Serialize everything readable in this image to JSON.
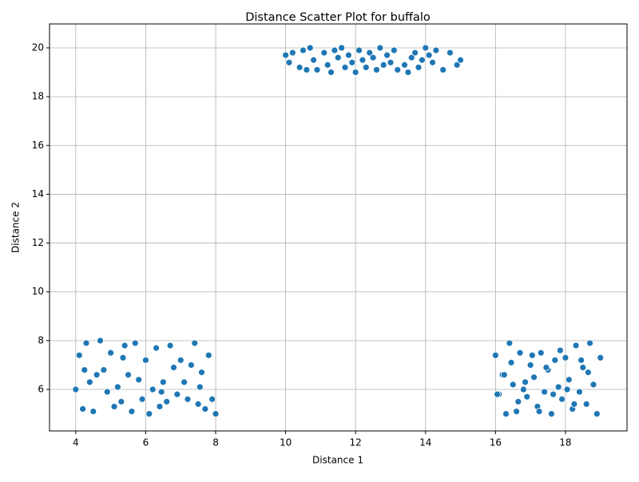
{
  "chart_data": {
    "type": "scatter",
    "title": "Distance Scatter Plot for buffalo",
    "x_label": "Distance 1",
    "y_label": "Distance 2",
    "series": [
      {
        "color": "#1f77b4",
        "x": [
          4.0,
          4.1,
          4.2,
          4.3,
          4.4,
          4.5,
          4.6,
          4.7,
          4.8,
          4.9,
          5.0,
          5.1,
          5.2,
          5.3,
          5.4,
          5.5,
          5.6,
          5.7,
          5.8,
          5.9,
          6.0,
          6.1,
          6.2,
          6.3,
          6.4,
          6.5,
          6.6,
          6.7,
          6.8,
          6.9,
          7.0,
          7.1,
          7.2,
          7.3,
          7.4,
          7.5,
          7.6,
          7.7,
          7.8,
          7.9,
          8.0,
          4.25,
          5.35,
          6.45,
          7.55,
          10.0,
          10.1,
          10.2,
          10.4,
          10.5,
          10.6,
          10.7,
          10.8,
          10.9,
          11.1,
          11.2,
          11.3,
          11.4,
          11.5,
          11.6,
          11.7,
          11.8,
          11.9,
          12.0,
          12.1,
          12.2,
          12.3,
          12.4,
          12.5,
          12.6,
          12.7,
          12.8,
          12.9,
          13.0,
          13.1,
          13.2,
          13.4,
          13.5,
          13.6,
          13.7,
          13.8,
          13.9,
          14.0,
          14.1,
          14.2,
          14.3,
          14.5,
          14.7,
          14.9,
          15.0,
          16.0,
          16.1,
          16.2,
          16.3,
          16.4,
          16.5,
          16.6,
          16.7,
          16.8,
          16.9,
          17.0,
          17.1,
          17.2,
          17.3,
          17.4,
          17.5,
          17.6,
          17.7,
          17.8,
          17.9,
          18.0,
          18.1,
          18.2,
          18.3,
          18.4,
          18.5,
          18.6,
          18.7,
          18.8,
          18.9,
          19.0,
          16.05,
          16.25,
          16.45,
          16.65,
          16.85,
          17.05,
          17.25,
          17.45,
          17.65,
          17.85,
          18.05,
          18.25,
          18.45,
          18.65
        ],
        "y": [
          6.0,
          7.4,
          5.2,
          7.9,
          6.3,
          5.1,
          6.6,
          8.0,
          6.8,
          5.9,
          7.5,
          5.3,
          6.1,
          5.5,
          7.8,
          6.6,
          5.1,
          7.9,
          6.4,
          5.6,
          7.2,
          5.0,
          6.0,
          7.7,
          5.3,
          6.3,
          5.5,
          7.8,
          6.9,
          5.8,
          7.2,
          6.3,
          5.6,
          7.0,
          7.9,
          5.4,
          6.7,
          5.2,
          7.4,
          5.6,
          5.0,
          6.8,
          7.3,
          5.9,
          6.1,
          19.7,
          19.4,
          19.8,
          19.2,
          19.9,
          19.1,
          20.0,
          19.5,
          19.1,
          19.8,
          19.3,
          19.0,
          19.9,
          19.6,
          20.0,
          19.2,
          19.7,
          19.4,
          19.0,
          19.9,
          19.5,
          19.2,
          19.8,
          19.6,
          19.1,
          20.0,
          19.3,
          19.7,
          19.4,
          19.9,
          19.1,
          19.3,
          19.0,
          19.6,
          19.8,
          19.2,
          19.5,
          20.0,
          19.7,
          19.4,
          19.9,
          19.1,
          19.8,
          19.3,
          19.5,
          7.4,
          5.8,
          6.6,
          5.0,
          7.9,
          6.2,
          5.1,
          7.5,
          6.0,
          5.7,
          7.0,
          6.5,
          5.3,
          7.5,
          5.9,
          6.8,
          5.0,
          7.2,
          6.1,
          5.6,
          7.3,
          6.4,
          5.2,
          7.8,
          5.9,
          6.9,
          5.4,
          7.9,
          6.2,
          5.0,
          7.3,
          5.8,
          6.6,
          7.1,
          5.5,
          6.3,
          7.4,
          5.1,
          6.9,
          5.8,
          7.6,
          6.0,
          5.4,
          7.2,
          6.7
        ]
      }
    ],
    "xlim": [
      3.25,
      19.76
    ],
    "ylim": [
      4.3,
      20.98
    ],
    "xticks": [
      4,
      6,
      8,
      10,
      12,
      14,
      16,
      18
    ],
    "yticks": [
      6,
      8,
      10,
      12,
      14,
      16,
      18,
      20
    ],
    "grid": true
  }
}
